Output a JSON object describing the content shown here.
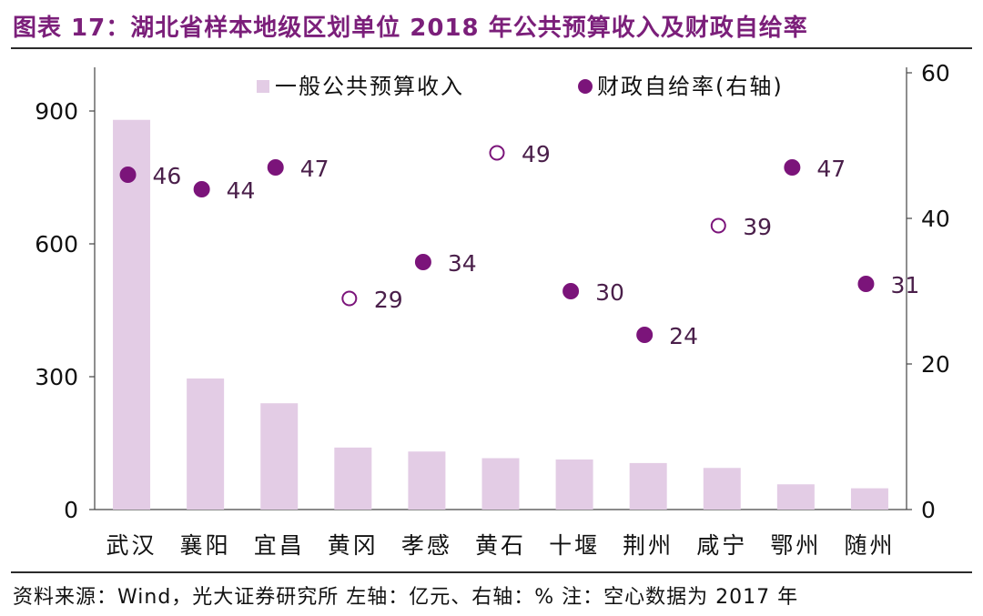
{
  "title": "图表 17：湖北省样本地级区划单位 2018 年公共预算收入及财政自给率",
  "source": "资料来源：Wind，光大证券研究所   左轴：亿元、右轴：%   注：空心数据为 2017 年",
  "colors": {
    "title": "#7B1F7A",
    "bar": "#E3CCE5",
    "dot": "#7B147A",
    "axis": "#444444",
    "text": "#111111"
  },
  "chart_data": {
    "type": "bar",
    "categories": [
      "武汉",
      "襄阳",
      "宜昌",
      "黄冈",
      "孝感",
      "黄石",
      "十堰",
      "荆州",
      "咸宁",
      "鄂州",
      "随州"
    ],
    "series": [
      {
        "name": "一般公共预算收入",
        "axis": "left",
        "type": "bar",
        "values": [
          880,
          296,
          240,
          140,
          131,
          116,
          113,
          105,
          94,
          57,
          48
        ]
      },
      {
        "name": "财政自给率(右轴)",
        "axis": "right",
        "type": "scatter",
        "values": [
          46,
          44,
          47,
          29,
          34,
          49,
          30,
          24,
          39,
          47,
          31
        ],
        "hollow": [
          false,
          false,
          false,
          true,
          false,
          true,
          false,
          false,
          true,
          false,
          false
        ]
      }
    ],
    "y_left": {
      "lim": [
        0,
        1000
      ],
      "ticks": [
        0,
        300,
        600,
        900
      ]
    },
    "y_right": {
      "lim": [
        0,
        60
      ],
      "ticks": [
        0,
        20,
        40,
        60
      ]
    },
    "legend": [
      "一般公共预算收入",
      "财政自给率(右轴)"
    ]
  }
}
